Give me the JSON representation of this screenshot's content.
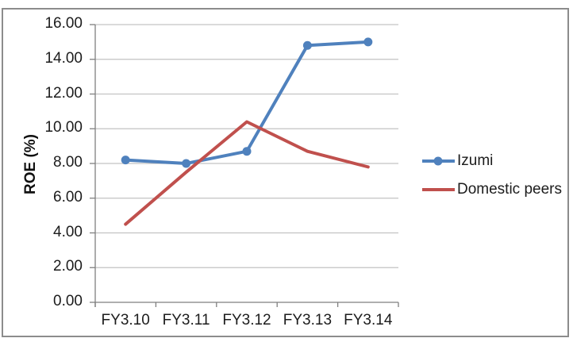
{
  "chart_data": {
    "type": "line",
    "title": "",
    "xlabel": "",
    "ylabel": "ROE (%)",
    "categories": [
      "FY3.10",
      "FY3.11",
      "FY3.12",
      "FY3.13",
      "FY3.14"
    ],
    "series": [
      {
        "name": "Izumi",
        "color": "#4F81BD",
        "marker": true,
        "values": [
          8.2,
          8.0,
          8.7,
          14.8,
          15.0
        ]
      },
      {
        "name": "Domestic peers",
        "color": "#C0504D",
        "marker": false,
        "values": [
          4.5,
          7.5,
          10.4,
          8.7,
          7.8
        ]
      }
    ],
    "ylim": [
      0,
      16
    ],
    "ytick_step": 2,
    "ytick_labels": [
      "0.00",
      "2.00",
      "4.00",
      "6.00",
      "8.00",
      "10.00",
      "12.00",
      "14.00",
      "16.00"
    ],
    "grid": "horizontal",
    "legend_position": "right"
  },
  "colors": {
    "series_izumi": "#4F81BD",
    "series_domestic_peers": "#C0504D",
    "gridline": "#c3c3c3",
    "axis": "#7f7f7f",
    "frame_border": "#8c8c8c",
    "text": "#1c1c1c",
    "background": "#ffffff"
  }
}
